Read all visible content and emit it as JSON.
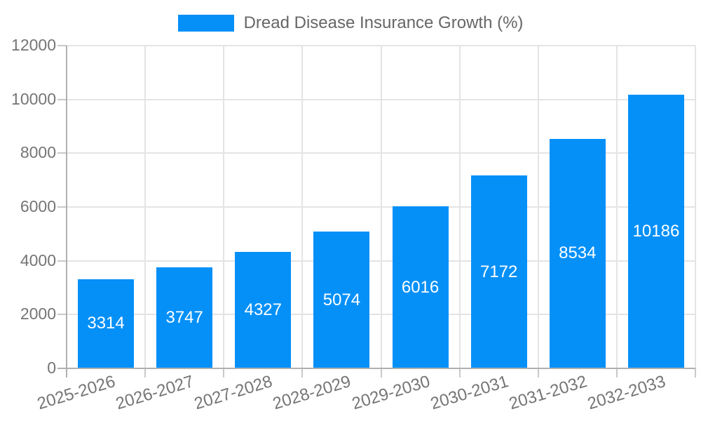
{
  "legend": {
    "label": "Dread Disease Insurance Growth (%)"
  },
  "chart_data": {
    "type": "bar",
    "title": "Dread Disease Insurance Growth (%)",
    "legend_position": "top",
    "categories": [
      "2025-2026",
      "2026-2027",
      "2027-2028",
      "2028-2029",
      "2029-2030",
      "2030-2031",
      "2031-2032",
      "2032-2033"
    ],
    "series": [
      {
        "name": "Dread Disease Insurance Growth (%)",
        "values": [
          3314,
          3747,
          4327,
          5074,
          6016,
          7172,
          8534,
          10186
        ]
      }
    ],
    "value_labels": [
      "3314",
      "3747",
      "4327",
      "5074",
      "6016",
      "7172",
      "8534",
      "10186"
    ],
    "xlabel": "",
    "ylabel": "",
    "ylim": [
      0,
      12000
    ],
    "ytick_step": 2000,
    "yticks": [
      "0",
      "2000",
      "4000",
      "6000",
      "8000",
      "10000",
      "12000"
    ],
    "grid": true,
    "x_label_rotation_deg": -17,
    "colors": {
      "bar": "#0590f8",
      "gridline": "#e4e4e4",
      "axis_line": "#b0b0b0",
      "tick": "#c9c9c9",
      "axis_text": "#757575",
      "legend_text": "#666666",
      "value_text": "#ffffff",
      "background": "#ffffff"
    }
  }
}
